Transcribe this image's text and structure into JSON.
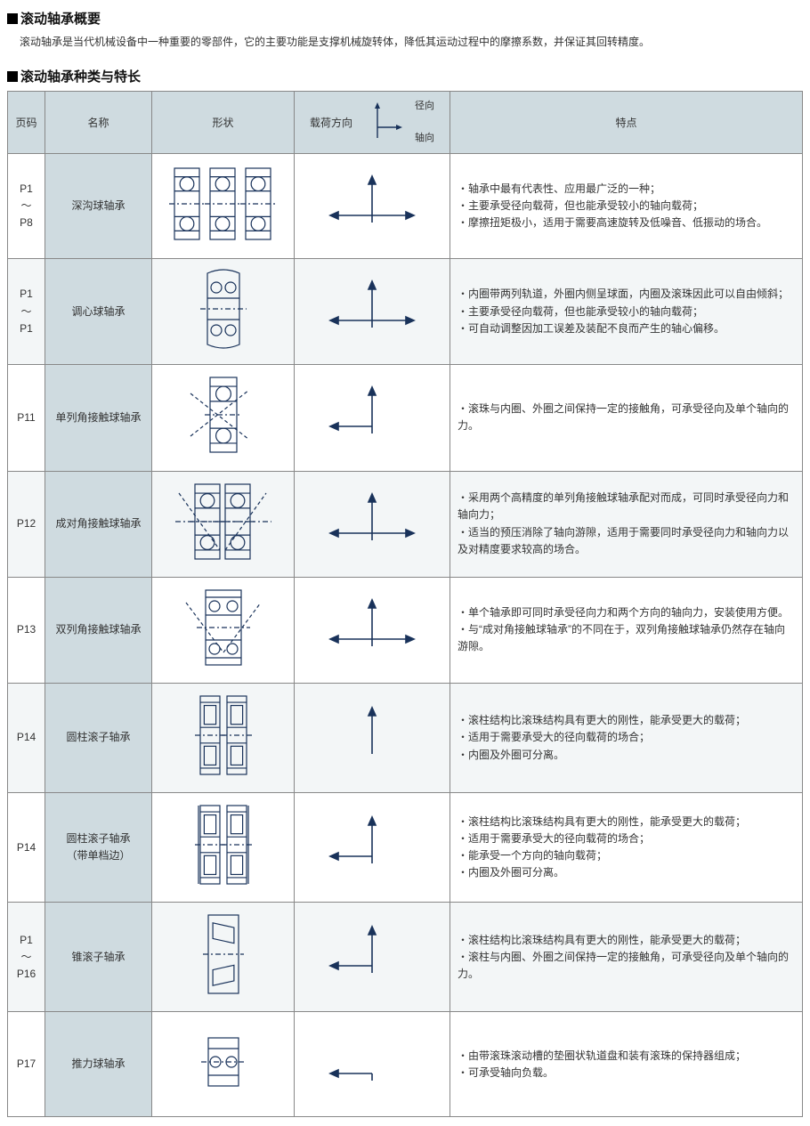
{
  "colors": {
    "header_bg": "#cfdbe0",
    "border": "#888888",
    "text": "#333333",
    "alt_row": "#f3f6f7",
    "stroke": "#19325a"
  },
  "overview": {
    "title": "滚动轴承概要",
    "text": "滚动轴承是当代机械设备中一种重要的零部件，它的主要功能是支撑机械旋转体，降低其运动过程中的摩擦系数，并保证其回转精度。"
  },
  "table_section_title": "滚动轴承种类与特长",
  "headers": {
    "page": "页码",
    "name": "名称",
    "shape": "形状",
    "load": "载荷方向",
    "load_radial": "径向",
    "load_axial": "轴向",
    "features": "特点"
  },
  "rows": [
    {
      "page": "P1\n～\nP8",
      "name": "深沟球轴承",
      "load": {
        "up": true,
        "down": false,
        "left": true,
        "right": true
      },
      "features": [
        "・轴承中最有代表性、应用最广泛的一种；",
        "・主要承受径向载荷，但也能承受较小的轴向载荷；",
        "・摩擦扭矩极小，适用于需要高速旋转及低噪音、低振动的场合。"
      ],
      "shape": "deepgroove",
      "alt": false
    },
    {
      "page": "P1\n～\nP1",
      "name": "调心球轴承",
      "load": {
        "up": true,
        "down": false,
        "left": true,
        "right": true
      },
      "features": [
        "・内圈带两列轨道，外圈内侧呈球面，内圈及滚珠因此可以自由倾斜；",
        "・主要承受径向载荷，但也能承受较小的轴向载荷；",
        "・可自动调整因加工误差及装配不良而产生的轴心偏移。"
      ],
      "shape": "selfalign",
      "alt": true
    },
    {
      "page": "P11",
      "name": "单列角接触球轴承",
      "load": {
        "up": true,
        "down": false,
        "left": true,
        "right": false
      },
      "features": [
        "・滚珠与内圈、外圈之间保持一定的接触角，可承受径向及单个轴向的力。"
      ],
      "shape": "angular_single",
      "alt": false
    },
    {
      "page": "P12",
      "name": "成对角接触球轴承",
      "load": {
        "up": true,
        "down": false,
        "left": true,
        "right": true
      },
      "features": [
        "・采用两个高精度的单列角接触球轴承配对而成，可同时承受径向力和轴向力；",
        "・适当的预压消除了轴向游隙，适用于需要同时承受径向力和轴向力以及对精度要求较高的场合。"
      ],
      "shape": "angular_pair",
      "alt": true
    },
    {
      "page": "P13",
      "name": "双列角接触球轴承",
      "load": {
        "up": true,
        "down": false,
        "left": true,
        "right": true
      },
      "features": [
        "・单个轴承即可同时承受径向力和两个方向的轴向力，安装使用方便。",
        "・与“成对角接触球轴承”的不同在于，双列角接触球轴承仍然存在轴向游隙。"
      ],
      "shape": "angular_double",
      "alt": false
    },
    {
      "page": "P14",
      "name": "圆柱滚子轴承",
      "load": {
        "up": true,
        "down": false,
        "left": false,
        "right": false
      },
      "features": [
        "・滚柱结构比滚珠结构具有更大的刚性，能承受更大的载荷；",
        "・适用于需要承受大的径向载荷的场合；",
        "・内圈及外圈可分离。"
      ],
      "shape": "cylindrical",
      "alt": true
    },
    {
      "page": "P14",
      "name": "圆柱滚子轴承\n（带单档边）",
      "load": {
        "up": true,
        "down": false,
        "left": true,
        "right": false
      },
      "features": [
        "・滚柱结构比滚珠结构具有更大的刚性，能承受更大的载荷；",
        "・适用于需要承受大的径向载荷的场合；",
        "・能承受一个方向的轴向载荷；",
        "・内圈及外圈可分离。"
      ],
      "shape": "cylindrical_flange",
      "alt": false
    },
    {
      "page": "P1\n～\nP16",
      "name": "锥滚子轴承",
      "load": {
        "up": true,
        "down": false,
        "left": true,
        "right": false
      },
      "features": [
        "・滚柱结构比滚珠结构具有更大的刚性，能承受更大的载荷；",
        "・滚柱与内圈、外圈之间保持一定的接触角，可承受径向及单个轴向的力。"
      ],
      "shape": "tapered",
      "alt": true
    },
    {
      "page": "P17",
      "name": "推力球轴承",
      "load": {
        "up": false,
        "down": false,
        "left": true,
        "right": false
      },
      "features": [
        "・由带滚珠滚动槽的垫圈状轨道盘和装有滚珠的保持器组成；",
        "・可承受轴向负载。"
      ],
      "shape": "thrust",
      "alt": false
    }
  ]
}
